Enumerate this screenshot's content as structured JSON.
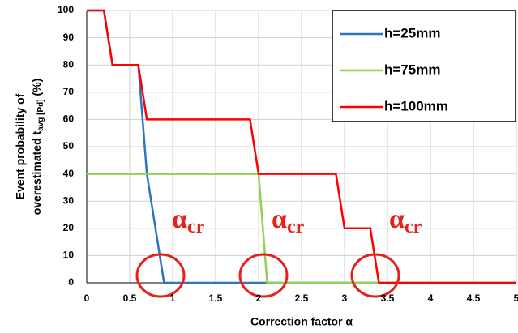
{
  "chart_data": {
    "type": "line",
    "x_label": "Correction factor α",
    "y_label": {
      "line1": "Event probability of",
      "line2_main": "overestimated t",
      "line2_sub": "avg [Pd]",
      "line2_end": " (%)"
    },
    "annotation": {
      "symbol": "α",
      "subscript": "cr"
    },
    "xlim": [
      0,
      5
    ],
    "xticks": [
      0,
      0.5,
      1,
      1.5,
      2,
      2.5,
      3,
      3.5,
      4,
      4.5,
      5
    ],
    "ylim": [
      0,
      100
    ],
    "yticks": [
      0,
      10,
      20,
      30,
      40,
      50,
      60,
      70,
      80,
      90,
      100
    ],
    "grid": true,
    "legend": "upper right",
    "series": [
      {
        "name": "h=25mm",
        "color": "#2e75c0",
        "x": [
          0,
          0.2,
          0.3,
          0.6,
          0.7,
          0.9,
          5
        ],
        "values": [
          100,
          100,
          80,
          80,
          40,
          0,
          0
        ]
      },
      {
        "name": "h=75mm",
        "color": "#92d050",
        "x": [
          0,
          2.0,
          2.1,
          5
        ],
        "values": [
          40,
          40,
          0,
          0
        ]
      },
      {
        "name": "h=100mm",
        "color": "#ff0000",
        "x": [
          0,
          0.2,
          0.3,
          0.6,
          0.7,
          1.9,
          2.0,
          2.9,
          3.0,
          3.3,
          3.4,
          5
        ],
        "values": [
          100,
          100,
          80,
          80,
          60,
          60,
          40,
          40,
          20,
          20,
          0,
          0
        ]
      }
    ]
  }
}
